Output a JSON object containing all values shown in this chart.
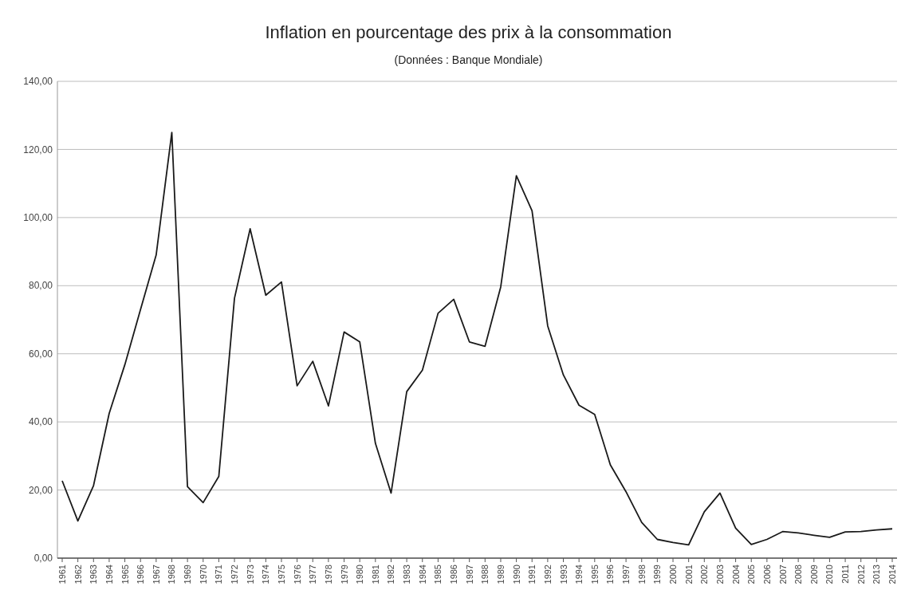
{
  "chart_data": {
    "type": "line",
    "title": "Inflation en pourcentage des prix à la consommation",
    "subtitle": "(Données : Banque Mondiale)",
    "categories": [
      "1961",
      "1962",
      "1963",
      "1964",
      "1965",
      "1966",
      "1967",
      "1968",
      "1969",
      "1970",
      "1971",
      "1972",
      "1973",
      "1974",
      "1975",
      "1976",
      "1977",
      "1978",
      "1979",
      "1980",
      "1981",
      "1982",
      "1983",
      "1984",
      "1985",
      "1986",
      "1987",
      "1988",
      "1989",
      "1990",
      "1991",
      "1992",
      "1993",
      "1994",
      "1995",
      "1996",
      "1997",
      "1998",
      "1999",
      "2000",
      "2001",
      "2002",
      "2003",
      "2004",
      "2005",
      "2006",
      "2007",
      "2008",
      "2009",
      "2010",
      "2011",
      "2012",
      "2013",
      "2014"
    ],
    "series": [
      {
        "color": "#1a1a1a",
        "values": [
          22.7,
          10.9,
          21.3,
          42.5,
          56.8,
          73,
          89,
          125,
          21,
          16.3,
          24,
          76.3,
          96.7,
          77.2,
          81.1,
          50.6,
          57.8,
          44.7,
          66.4,
          63.5,
          33.7,
          19.1,
          48.9,
          55.2,
          71.9,
          76,
          63.5,
          62.2,
          79.6,
          112.3,
          102,
          68.2,
          53.8,
          44.9,
          42.2,
          27.4,
          19.5,
          10.5,
          5.5,
          4.6,
          3.9,
          13.6,
          19.1,
          8.8,
          4,
          5.5,
          7.8,
          7.4,
          6.7,
          6.1,
          7.7,
          7.8,
          8.3,
          8.6
        ]
      }
    ],
    "ylim": [
      0,
      140
    ],
    "yticks": [
      {
        "value": 0,
        "label": "0,00"
      },
      {
        "value": 20,
        "label": "20,00"
      },
      {
        "value": 40,
        "label": "40,00"
      },
      {
        "value": 60,
        "label": "60,00"
      },
      {
        "value": 80,
        "label": "80,00"
      },
      {
        "value": 100,
        "label": "100,00"
      },
      {
        "value": 120,
        "label": "120,00"
      },
      {
        "value": 140,
        "label": "140,00"
      }
    ],
    "grid": "y",
    "marker": "none",
    "line_style": "solid"
  }
}
